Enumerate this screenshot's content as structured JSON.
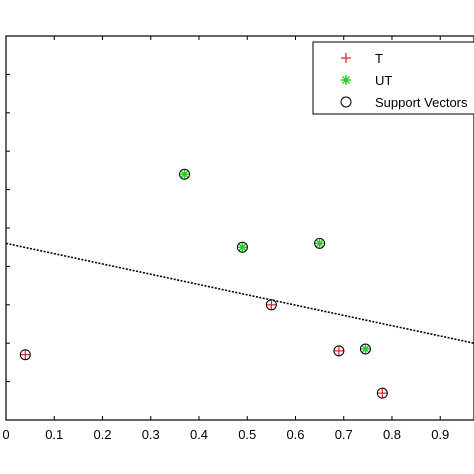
{
  "chart_data": {
    "type": "scatter",
    "title": "",
    "xlabel": "",
    "ylabel": "",
    "xlim": [
      0,
      0.97
    ],
    "ylim": [
      0,
      1
    ],
    "x_ticks": [
      0,
      0.1,
      0.2,
      0.3,
      0.4,
      0.5,
      0.6,
      0.7,
      0.8,
      0.9
    ],
    "x_tick_labels": [
      "0",
      "0.1",
      "0.2",
      "0.3",
      "0.4",
      "0.5",
      "0.6",
      "0.7",
      "0.8",
      "0.9"
    ],
    "y_ticks": [
      0.1,
      0.2,
      0.3,
      0.4,
      0.5,
      0.6,
      0.7,
      0.8,
      0.9
    ],
    "grid": false,
    "legend_position": "top-right",
    "series": [
      {
        "name": "T",
        "marker": "plus",
        "color": "#dd2222",
        "points": [
          [
            0.04,
            0.17
          ],
          [
            0.55,
            0.3
          ],
          [
            0.69,
            0.18
          ],
          [
            0.78,
            0.07
          ]
        ]
      },
      {
        "name": "UT",
        "marker": "star",
        "color": "#22cc22",
        "points": [
          [
            0.37,
            0.64
          ],
          [
            0.49,
            0.45
          ],
          [
            0.65,
            0.46
          ],
          [
            0.745,
            0.185
          ]
        ]
      },
      {
        "name": "Support Vectors",
        "marker": "circle",
        "color": "#000000",
        "points": [
          [
            0.04,
            0.17
          ],
          [
            0.55,
            0.3
          ],
          [
            0.69,
            0.18
          ],
          [
            0.78,
            0.07
          ],
          [
            0.37,
            0.64
          ],
          [
            0.49,
            0.45
          ],
          [
            0.65,
            0.46
          ],
          [
            0.745,
            0.185
          ]
        ]
      }
    ],
    "decision_boundary": {
      "style": "dashed",
      "color": "#000000",
      "points": [
        [
          0,
          0.46
        ],
        [
          0.97,
          0.2
        ]
      ]
    }
  }
}
